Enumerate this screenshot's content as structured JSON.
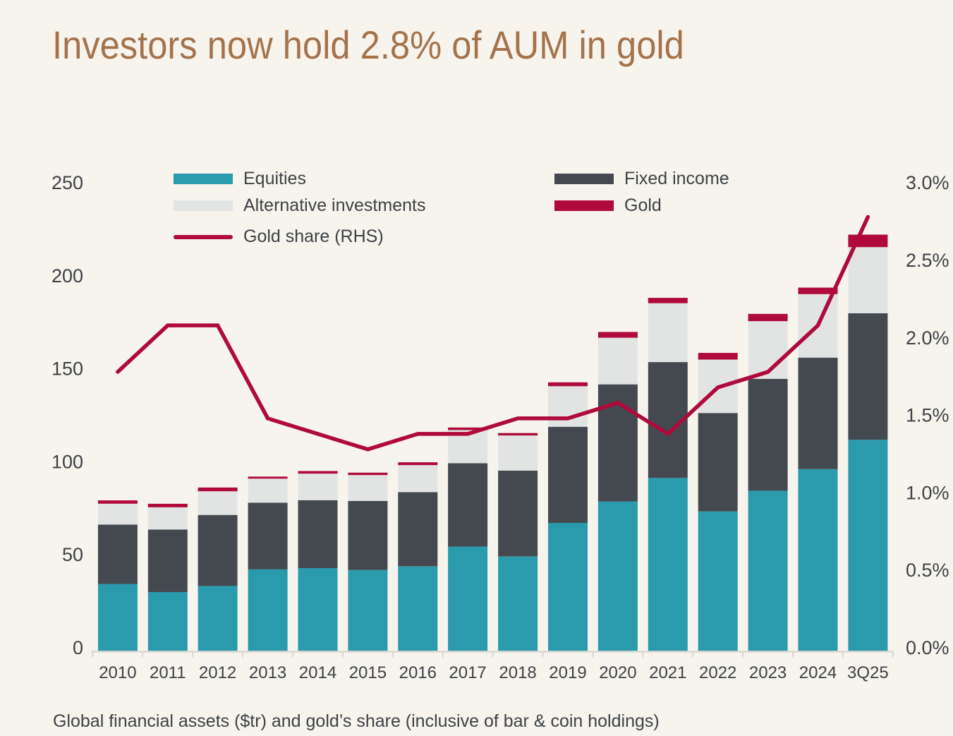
{
  "palette": {
    "background": "#f7f4ed",
    "title_text": "#a5734b",
    "label_text": "#3d4247",
    "axis_line": "#dad7cf",
    "equities": "#2a9aad",
    "fixed_income": "#444950",
    "alternative_investments": "#e2e4e4",
    "gold": "#b00a3c",
    "gold_share_line": "#b00a3c"
  },
  "chart_data": {
    "type": "bar",
    "variant": "stacked-columns-with-line-overlay",
    "title": "Investors now hold 2.8% of AUM in gold",
    "footnote": "Global financial assets ($tr) and gold’s share (inclusive of bar & coin holdings)",
    "categories": [
      "2010",
      "2011",
      "2012",
      "2013",
      "2014",
      "2015",
      "2016",
      "2017",
      "2018",
      "2019",
      "2020",
      "2021",
      "2022",
      "2023",
      "2024",
      "3Q25"
    ],
    "series": [
      {
        "name": "Equities",
        "type": "bar",
        "color_key": "equities",
        "values": [
          36.0,
          31.6,
          34.9,
          43.8,
          44.5,
          43.5,
          45.4,
          56.1,
          50.7,
          68.8,
          80.3,
          93.0,
          75.0,
          86.1,
          97.7,
          113.5
        ]
      },
      {
        "name": "Fixed income",
        "type": "bar",
        "color_key": "fixed_income",
        "values": [
          31.9,
          33.6,
          38.2,
          35.9,
          36.5,
          37.1,
          39.9,
          44.8,
          46.2,
          51.7,
          63.0,
          62.3,
          52.9,
          60.2,
          60.0,
          68.0
        ]
      },
      {
        "name": "Alternative investments",
        "type": "bar",
        "color_key": "alternative_investments",
        "values": [
          11.2,
          12.0,
          12.7,
          12.9,
          14.3,
          13.9,
          14.6,
          17.8,
          18.9,
          21.8,
          25.1,
          31.6,
          28.7,
          31.0,
          34.1,
          35.6
        ]
      },
      {
        "name": "Gold",
        "type": "bar",
        "color_key": "gold",
        "values": [
          1.8,
          1.9,
          2.0,
          1.1,
          1.4,
          1.3,
          1.5,
          1.4,
          1.3,
          2.1,
          3.1,
          2.9,
          3.6,
          3.9,
          3.5,
          6.7
        ]
      },
      {
        "name": "Gold share (RHS)",
        "type": "line",
        "axis": "right",
        "color_key": "gold_share_line",
        "values": [
          1.8,
          2.1,
          2.1,
          1.5,
          1.4,
          1.3,
          1.4,
          1.4,
          1.5,
          1.5,
          1.6,
          1.4,
          1.7,
          1.8,
          2.1,
          2.8
        ]
      }
    ],
    "left_axis": {
      "tick_labels": [
        "0",
        "50",
        "100",
        "150",
        "200",
        "250"
      ],
      "tick_values": [
        0,
        50,
        100,
        150,
        200,
        250
      ],
      "range": [
        0,
        250
      ]
    },
    "right_axis": {
      "tick_labels": [
        "0.0%",
        "0.5%",
        "1.0%",
        "1.5%",
        "2.0%",
        "2.5%",
        "3.0%"
      ],
      "tick_values": [
        0,
        0.5,
        1.0,
        1.5,
        2.0,
        2.5,
        3.0
      ],
      "range": [
        0,
        3.0
      ]
    },
    "grid": "off",
    "legend_position": "top",
    "legend": {
      "columns": [
        {
          "items": [
            {
              "label": "Equities",
              "swatch": "rect",
              "color_key": "equities"
            },
            {
              "label": "Alternative investments",
              "swatch": "rect",
              "color_key": "alternative_investments"
            },
            {
              "label": "Gold share (RHS)",
              "swatch": "line",
              "color_key": "gold_share_line"
            }
          ]
        },
        {
          "items": [
            {
              "label": "Fixed income",
              "swatch": "rect",
              "color_key": "fixed_income"
            },
            {
              "label": "Gold",
              "swatch": "rect",
              "color_key": "gold"
            }
          ]
        }
      ]
    }
  }
}
